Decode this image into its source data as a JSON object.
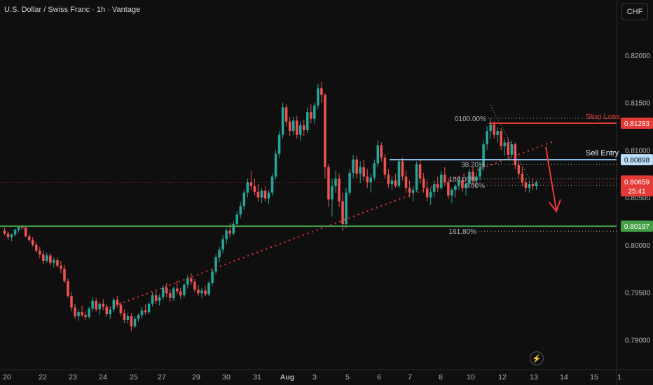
{
  "header": {
    "symbol_title": "U.S. Dollar / Swiss Franc · 1h · Vantage",
    "currency": "CHF"
  },
  "chart_data": {
    "type": "candlestick",
    "title": "U.S. Dollar / Swiss Franc · 1h · Vantage",
    "y_axis": {
      "ticks": [
        "0.82000",
        "0.81500",
        "0.81000",
        "0.80500",
        "0.80000",
        "0.79500",
        "0.79000"
      ],
      "tick_values": [
        0.82,
        0.815,
        0.81,
        0.805,
        0.8,
        0.795,
        0.79
      ],
      "range": [
        0.7873,
        0.8236
      ]
    },
    "x_axis": {
      "ticks": [
        "20",
        "22",
        "23",
        "24",
        "25",
        "27",
        "29",
        "30",
        "31",
        "Aug",
        "3",
        "5",
        "6",
        "7",
        "8",
        "10",
        "12",
        "13",
        "14",
        "15",
        "1"
      ]
    },
    "price_levels": [
      {
        "label": "0.81283",
        "value": 0.81283,
        "color": "#e53935",
        "annotation": "Stop Loss",
        "style": "solid"
      },
      {
        "label": "0.80898",
        "value": 0.80898,
        "color": "#90caf9",
        "annotation": "Sell Entry",
        "style": "solid"
      },
      {
        "label": "0.80197",
        "value": 0.80197,
        "color": "#43a047",
        "annotation": "",
        "style": "solid"
      }
    ],
    "current_price": {
      "label": "0.80659",
      "value": 0.80659,
      "countdown": "25:41",
      "color": "#e53935"
    },
    "fibonacci": [
      {
        "label": "0.00%",
        "value": 0.8063
      },
      {
        "label": "100.00%",
        "value": 0.80695
      },
      {
        "label": "38.20%",
        "value": 0.8085
      },
      {
        "label": "161.80%",
        "value": 0.80145
      },
      {
        "label": "0100.00%",
        "value": 0.81335
      }
    ],
    "candles_ohlc": [
      [
        0.8015,
        0.8018,
        0.801,
        0.8012
      ],
      [
        0.8012,
        0.8014,
        0.8005,
        0.8008
      ],
      [
        0.8008,
        0.8012,
        0.8004,
        0.8011
      ],
      [
        0.8011,
        0.8017,
        0.8009,
        0.8016
      ],
      [
        0.8016,
        0.802,
        0.8013,
        0.8019
      ],
      [
        0.8019,
        0.8021,
        0.8016,
        0.8018
      ],
      [
        0.8018,
        0.8019,
        0.8008,
        0.8009
      ],
      [
        0.8009,
        0.8012,
        0.8003,
        0.8005
      ],
      [
        0.8005,
        0.8008,
        0.7998,
        0.8
      ],
      [
        0.8,
        0.8003,
        0.7992,
        0.7994
      ],
      [
        0.7994,
        0.7998,
        0.7986,
        0.799
      ],
      [
        0.799,
        0.7994,
        0.798,
        0.7983
      ],
      [
        0.7983,
        0.7992,
        0.7981,
        0.7989
      ],
      [
        0.7989,
        0.7991,
        0.7978,
        0.7981
      ],
      [
        0.7981,
        0.7987,
        0.7976,
        0.7984
      ],
      [
        0.7984,
        0.7987,
        0.7976,
        0.7978
      ],
      [
        0.7978,
        0.7983,
        0.797,
        0.7975
      ],
      [
        0.7975,
        0.7979,
        0.796,
        0.7962
      ],
      [
        0.7962,
        0.7965,
        0.7944,
        0.7946
      ],
      [
        0.7946,
        0.795,
        0.793,
        0.7934
      ],
      [
        0.7934,
        0.7938,
        0.7922,
        0.7925
      ],
      [
        0.7925,
        0.7932,
        0.792,
        0.7929
      ],
      [
        0.7929,
        0.7936,
        0.7924,
        0.7926
      ],
      [
        0.7926,
        0.793,
        0.7921,
        0.7924
      ],
      [
        0.7924,
        0.7935,
        0.7922,
        0.7933
      ],
      [
        0.7933,
        0.7945,
        0.793,
        0.7941
      ],
      [
        0.7941,
        0.7944,
        0.793,
        0.7932
      ],
      [
        0.7932,
        0.794,
        0.7926,
        0.7938
      ],
      [
        0.7938,
        0.7943,
        0.7931,
        0.7935
      ],
      [
        0.7935,
        0.7938,
        0.7924,
        0.7927
      ],
      [
        0.7927,
        0.7935,
        0.7922,
        0.7932
      ],
      [
        0.7932,
        0.7944,
        0.7929,
        0.7942
      ],
      [
        0.7942,
        0.7946,
        0.7934,
        0.7937
      ],
      [
        0.7937,
        0.794,
        0.7925,
        0.7928
      ],
      [
        0.7928,
        0.7932,
        0.7918,
        0.7921
      ],
      [
        0.7921,
        0.7928,
        0.7917,
        0.7925
      ],
      [
        0.7925,
        0.7928,
        0.7909,
        0.7914
      ],
      [
        0.7914,
        0.7925,
        0.7912,
        0.7922
      ],
      [
        0.7922,
        0.7928,
        0.7919,
        0.7926
      ],
      [
        0.7926,
        0.7935,
        0.7923,
        0.7931
      ],
      [
        0.7931,
        0.7937,
        0.7926,
        0.7929
      ],
      [
        0.7929,
        0.794,
        0.7927,
        0.7938
      ],
      [
        0.7938,
        0.795,
        0.7935,
        0.7947
      ],
      [
        0.7947,
        0.7952,
        0.7938,
        0.7941
      ],
      [
        0.7941,
        0.7948,
        0.7936,
        0.7945
      ],
      [
        0.7945,
        0.7958,
        0.7942,
        0.7955
      ],
      [
        0.7955,
        0.796,
        0.7945,
        0.7949
      ],
      [
        0.7949,
        0.7953,
        0.794,
        0.7944
      ],
      [
        0.7944,
        0.7956,
        0.7941,
        0.7954
      ],
      [
        0.7954,
        0.7962,
        0.7948,
        0.7951
      ],
      [
        0.7951,
        0.7955,
        0.7943,
        0.7947
      ],
      [
        0.7947,
        0.796,
        0.7945,
        0.7958
      ],
      [
        0.7958,
        0.7968,
        0.7954,
        0.7965
      ],
      [
        0.7965,
        0.797,
        0.7958,
        0.7961
      ],
      [
        0.7961,
        0.7964,
        0.795,
        0.7953
      ],
      [
        0.7953,
        0.7958,
        0.7946,
        0.7949
      ],
      [
        0.7949,
        0.7955,
        0.7944,
        0.7952
      ],
      [
        0.7952,
        0.7957,
        0.7946,
        0.7948
      ],
      [
        0.7948,
        0.7962,
        0.7946,
        0.796
      ],
      [
        0.796,
        0.7975,
        0.7957,
        0.7972
      ],
      [
        0.7972,
        0.799,
        0.7969,
        0.7987
      ],
      [
        0.7987,
        0.7998,
        0.7982,
        0.7995
      ],
      [
        0.7995,
        0.801,
        0.7991,
        0.8006
      ],
      [
        0.8006,
        0.8018,
        0.8001,
        0.8015
      ],
      [
        0.8015,
        0.8023,
        0.8008,
        0.8012
      ],
      [
        0.8012,
        0.8025,
        0.801,
        0.8022
      ],
      [
        0.8022,
        0.8035,
        0.8019,
        0.8032
      ],
      [
        0.8032,
        0.8045,
        0.8028,
        0.8041
      ],
      [
        0.8041,
        0.8058,
        0.8037,
        0.8055
      ],
      [
        0.8055,
        0.807,
        0.805,
        0.8066
      ],
      [
        0.8066,
        0.8078,
        0.8058,
        0.8062
      ],
      [
        0.8062,
        0.807,
        0.8052,
        0.8056
      ],
      [
        0.8056,
        0.8064,
        0.8046,
        0.805
      ],
      [
        0.805,
        0.806,
        0.8044,
        0.8057
      ],
      [
        0.8057,
        0.8062,
        0.8046,
        0.8049
      ],
      [
        0.8049,
        0.8058,
        0.8043,
        0.8055
      ],
      [
        0.8055,
        0.8075,
        0.8052,
        0.8072
      ],
      [
        0.8072,
        0.81,
        0.8069,
        0.8096
      ],
      [
        0.8096,
        0.812,
        0.8092,
        0.8116
      ],
      [
        0.8116,
        0.815,
        0.8112,
        0.8145
      ],
      [
        0.8145,
        0.8148,
        0.8125,
        0.813
      ],
      [
        0.813,
        0.8135,
        0.8115,
        0.812
      ],
      [
        0.812,
        0.8135,
        0.8116,
        0.8131
      ],
      [
        0.8131,
        0.8136,
        0.8112,
        0.8116
      ],
      [
        0.8116,
        0.813,
        0.811,
        0.8126
      ],
      [
        0.8126,
        0.8132,
        0.8115,
        0.8121
      ],
      [
        0.8121,
        0.8145,
        0.8118,
        0.814
      ],
      [
        0.814,
        0.8148,
        0.8128,
        0.8133
      ],
      [
        0.8133,
        0.815,
        0.8128,
        0.8147
      ],
      [
        0.8147,
        0.817,
        0.8143,
        0.8165
      ],
      [
        0.8165,
        0.8172,
        0.815,
        0.8158
      ],
      [
        0.8158,
        0.816,
        0.807,
        0.8082
      ],
      [
        0.8082,
        0.8085,
        0.804,
        0.8048
      ],
      [
        0.8048,
        0.807,
        0.803,
        0.8062
      ],
      [
        0.8062,
        0.8078,
        0.8055,
        0.807
      ],
      [
        0.807,
        0.8075,
        0.804,
        0.8046
      ],
      [
        0.8046,
        0.8055,
        0.8015,
        0.8022
      ],
      [
        0.8022,
        0.806,
        0.8018,
        0.8055
      ],
      [
        0.8055,
        0.808,
        0.8052,
        0.8076
      ],
      [
        0.8076,
        0.8095,
        0.807,
        0.809
      ],
      [
        0.809,
        0.8094,
        0.807,
        0.8075
      ],
      [
        0.8075,
        0.8088,
        0.8065,
        0.8082
      ],
      [
        0.8082,
        0.809,
        0.8068,
        0.8072
      ],
      [
        0.8072,
        0.808,
        0.806,
        0.8066
      ],
      [
        0.8066,
        0.8075,
        0.8055,
        0.8071
      ],
      [
        0.8071,
        0.809,
        0.8068,
        0.8086
      ],
      [
        0.8086,
        0.811,
        0.8082,
        0.8105
      ],
      [
        0.8105,
        0.8108,
        0.8088,
        0.8092
      ],
      [
        0.8092,
        0.8096,
        0.807,
        0.8074
      ],
      [
        0.8074,
        0.808,
        0.806,
        0.8064
      ],
      [
        0.8064,
        0.8072,
        0.8058,
        0.8068
      ],
      [
        0.8068,
        0.8075,
        0.806,
        0.8062
      ],
      [
        0.8062,
        0.809,
        0.806,
        0.8088
      ],
      [
        0.8088,
        0.8092,
        0.8068,
        0.8072
      ],
      [
        0.8072,
        0.8078,
        0.8055,
        0.806
      ],
      [
        0.806,
        0.8068,
        0.805,
        0.8055
      ],
      [
        0.8055,
        0.8062,
        0.8046,
        0.8058
      ],
      [
        0.8058,
        0.8088,
        0.8056,
        0.8085
      ],
      [
        0.8085,
        0.809,
        0.8065,
        0.807
      ],
      [
        0.807,
        0.8076,
        0.8055,
        0.806
      ],
      [
        0.806,
        0.8068,
        0.8046,
        0.805
      ],
      [
        0.805,
        0.806,
        0.8042,
        0.8056
      ],
      [
        0.8056,
        0.8068,
        0.805,
        0.8064
      ],
      [
        0.8064,
        0.8072,
        0.8056,
        0.806
      ],
      [
        0.806,
        0.8078,
        0.8058,
        0.8074
      ],
      [
        0.8074,
        0.8082,
        0.8062,
        0.8066
      ],
      [
        0.8066,
        0.807,
        0.8048,
        0.8052
      ],
      [
        0.8052,
        0.806,
        0.8044,
        0.8058
      ],
      [
        0.8058,
        0.8064,
        0.805,
        0.8062
      ],
      [
        0.8062,
        0.8072,
        0.8058,
        0.8068
      ],
      [
        0.8068,
        0.8072,
        0.8056,
        0.806
      ],
      [
        0.806,
        0.8066,
        0.8052,
        0.8064
      ],
      [
        0.8064,
        0.808,
        0.806,
        0.8077
      ],
      [
        0.8077,
        0.8082,
        0.8062,
        0.8068
      ],
      [
        0.8068,
        0.8076,
        0.806,
        0.8072
      ],
      [
        0.8072,
        0.8085,
        0.8068,
        0.8082
      ],
      [
        0.8082,
        0.811,
        0.8078,
        0.8106
      ],
      [
        0.8106,
        0.8125,
        0.81,
        0.812
      ],
      [
        0.812,
        0.8133,
        0.8112,
        0.8127
      ],
      [
        0.8127,
        0.813,
        0.8112,
        0.8116
      ],
      [
        0.8116,
        0.8124,
        0.8108,
        0.812
      ],
      [
        0.812,
        0.8123,
        0.81,
        0.8104
      ],
      [
        0.8104,
        0.8112,
        0.8094,
        0.8108
      ],
      [
        0.8108,
        0.8112,
        0.809,
        0.8095
      ],
      [
        0.8095,
        0.811,
        0.8092,
        0.8106
      ],
      [
        0.8106,
        0.8108,
        0.808,
        0.8084
      ],
      [
        0.8084,
        0.809,
        0.807,
        0.8075
      ],
      [
        0.8075,
        0.8082,
        0.8062,
        0.8066
      ],
      [
        0.8066,
        0.807,
        0.8056,
        0.806
      ],
      [
        0.806,
        0.8068,
        0.8055,
        0.8064
      ],
      [
        0.8064,
        0.807,
        0.8058,
        0.8062
      ],
      [
        0.8062,
        0.8068,
        0.8058,
        0.8066
      ]
    ]
  },
  "annotations": {
    "stop_loss": "Stop Loss",
    "sell_entry": "Sell Entry"
  },
  "bottom_icon": "lightning-icon"
}
